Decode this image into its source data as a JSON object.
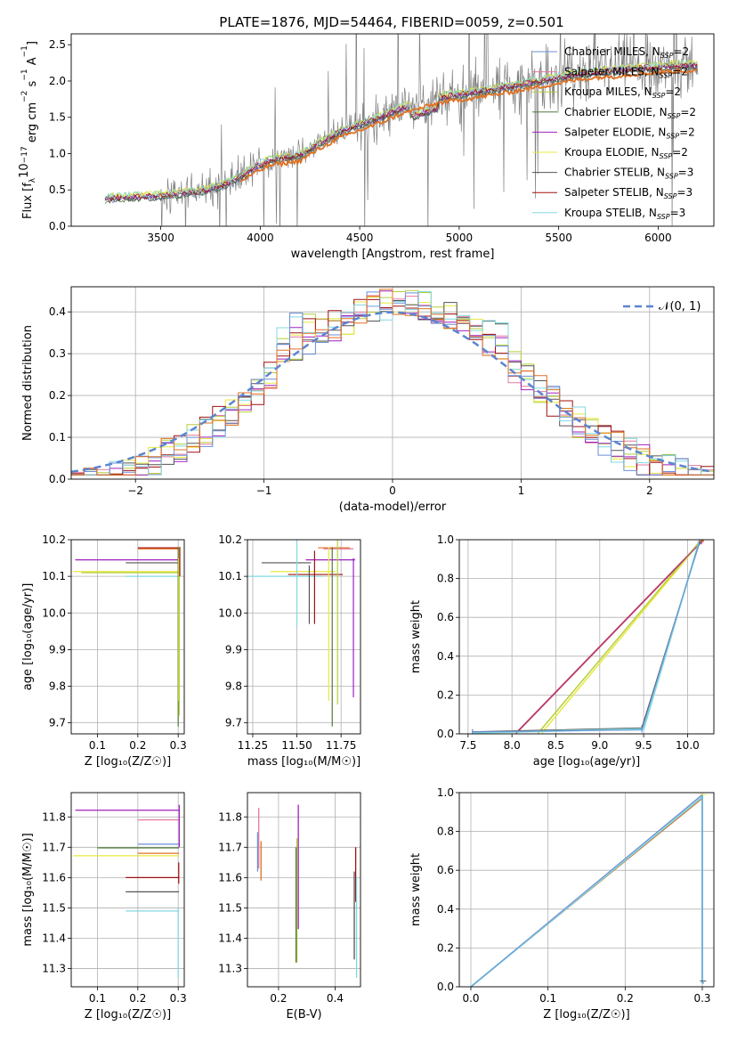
{
  "figure_title": "PLATE=1876, MJD=54464, FIBERID=0059, z=0.501",
  "colors": {
    "chabrier_miles": "#6a8fd6",
    "salpeter_miles": "#e67aa0",
    "kroupa_miles": "#b5cf3a",
    "chabrier_elodie": "#4f7a3a",
    "salpeter_elodie": "#a020c0",
    "kroupa_elodie": "#e8e840",
    "chabrier_stelib": "#555555",
    "salpeter_stelib": "#a01010",
    "kroupa_stelib": "#80d8e0",
    "orange_model": "#e07020",
    "observed_spectrum": "#808080",
    "normal_curve": "#5b85d0"
  },
  "chart_data": [
    {
      "id": "spectrum",
      "type": "line",
      "xlabel": "wavelength [Angstrom, rest frame]",
      "ylabel_parts": [
        "Flux [f",
        "λ",
        "10",
        "−17",
        " erg cm",
        "−2",
        " s",
        "−1",
        " A",
        "−1",
        "]"
      ],
      "xlim": [
        3050,
        6280
      ],
      "ylim": [
        0,
        2.65
      ],
      "xticks": [
        3500,
        4000,
        4500,
        5000,
        5500,
        6000
      ],
      "yticks": [
        0.0,
        0.5,
        1.0,
        1.5,
        2.0,
        2.5
      ],
      "grid": false,
      "legend_position": "upper-right",
      "legend": [
        {
          "label": "Chabrier MILES, N",
          "sub": "SSP",
          "suffix": "=2",
          "color_key": "chabrier_miles"
        },
        {
          "label": "Salpeter MILES, N",
          "sub": "SSP",
          "suffix": "=2",
          "color_key": "salpeter_miles"
        },
        {
          "label": "Kroupa MILES, N",
          "sub": "SSP",
          "suffix": "=2",
          "color_key": "kroupa_miles"
        },
        {
          "label": "Chabrier ELODIE, N",
          "sub": "SSP",
          "suffix": "=2",
          "color_key": "chabrier_elodie"
        },
        {
          "label": "Salpeter ELODIE, N",
          "sub": "SSP",
          "suffix": "=2",
          "color_key": "salpeter_elodie"
        },
        {
          "label": "Kroupa ELODIE, N",
          "sub": "SSP",
          "suffix": "=2",
          "color_key": "kroupa_elodie"
        },
        {
          "label": "Chabrier STELIB, N",
          "sub": "SSP",
          "suffix": "=3",
          "color_key": "chabrier_stelib"
        },
        {
          "label": "Salpeter STELIB, N",
          "sub": "SSP",
          "suffix": "=3",
          "color_key": "salpeter_stelib"
        },
        {
          "label": "Kroupa STELIB, N",
          "sub": "SSP",
          "suffix": "=3",
          "color_key": "kroupa_stelib"
        }
      ],
      "model_trend": {
        "x": [
          3220,
          3300,
          3500,
          3700,
          3850,
          3950,
          4050,
          4200,
          4300,
          4400,
          4500,
          4600,
          4700,
          4800,
          4900,
          5000,
          5100,
          5200,
          5300,
          5400,
          5500,
          5600,
          5700,
          5800,
          5900,
          6000,
          6100,
          6130
        ],
        "y": [
          0.38,
          0.4,
          0.42,
          0.48,
          0.6,
          0.78,
          0.92,
          0.98,
          1.15,
          1.3,
          1.4,
          1.5,
          1.62,
          1.7,
          1.78,
          1.82,
          1.86,
          1.9,
          1.95,
          2.0,
          2.05,
          2.1,
          2.13,
          2.15,
          2.18,
          2.2,
          2.22,
          2.22
        ]
      }
    },
    {
      "id": "residuals",
      "type": "line",
      "xlabel": "(data-model)/error",
      "ylabel": "Normed distribution",
      "xlim": [
        -2.5,
        2.5
      ],
      "ylim": [
        0,
        0.46
      ],
      "xticks": [
        -2,
        -1,
        0,
        1,
        2
      ],
      "xtick_labels": [
        "−2",
        "−1",
        "0",
        "1",
        "2"
      ],
      "yticks": [
        0.0,
        0.1,
        0.2,
        0.3,
        0.4
      ],
      "grid": true,
      "legend_position": "upper-right",
      "normal_label": "𝒩(0, 1)",
      "normal_mu": 0,
      "normal_sigma": 1
    },
    {
      "id": "age_vs_Z",
      "type": "scatter",
      "xlabel": "Z [log₁₀(Z/Z☉)]",
      "ylabel": "age  [log₁₀(age/yr)]",
      "xlim": [
        0.035,
        0.315
      ],
      "ylim": [
        9.67,
        10.2
      ],
      "xticks": [
        0.1,
        0.2,
        0.3
      ],
      "yticks": [
        9.7,
        9.8,
        9.9,
        10.0,
        10.1,
        10.2
      ],
      "grid": true
    },
    {
      "id": "age_vs_mass",
      "type": "scatter",
      "xlabel": "mass [log₁₀(M/M☉)]",
      "xlim": [
        11.22,
        11.86
      ],
      "ylim": [
        9.67,
        10.2
      ],
      "xticks": [
        11.25,
        11.5,
        11.75
      ],
      "yticks": [
        9.7,
        9.8,
        9.9,
        10.0,
        10.1,
        10.2
      ],
      "grid": true
    },
    {
      "id": "massweight_vs_age",
      "type": "line",
      "xlabel": "age  [log₁₀(age/yr)]",
      "ylabel": "mass weight",
      "xlim": [
        7.4,
        10.3
      ],
      "ylim": [
        0,
        1
      ],
      "xticks": [
        7.5,
        8.0,
        8.5,
        9.0,
        9.5,
        10.0
      ],
      "yticks": [
        0.0,
        0.2,
        0.4,
        0.6,
        0.8,
        1.0
      ],
      "grid": true
    },
    {
      "id": "mass_vs_Z",
      "type": "scatter",
      "xlabel": "Z [log₁₀(Z/Z☉)]",
      "ylabel": "mass [log₁₀(M/M☉)]",
      "xlim": [
        0.035,
        0.315
      ],
      "ylim": [
        11.24,
        11.88
      ],
      "xticks": [
        0.1,
        0.2,
        0.3
      ],
      "yticks": [
        11.3,
        11.4,
        11.5,
        11.6,
        11.7,
        11.8
      ],
      "grid": true
    },
    {
      "id": "mass_vs_ebv",
      "type": "scatter",
      "xlabel": "E(B-V)",
      "xlim": [
        0.09,
        0.49
      ],
      "ylim": [
        11.24,
        11.88
      ],
      "xticks": [
        0.2,
        0.4
      ],
      "yticks": [
        11.3,
        11.4,
        11.5,
        11.6,
        11.7,
        11.8
      ],
      "grid": true
    },
    {
      "id": "massweight_vs_Z",
      "type": "line",
      "xlabel": "Z [log₁₀(Z/Z☉)]",
      "ylabel": "mass weight",
      "xlim": [
        -0.015,
        0.315
      ],
      "ylim": [
        0,
        1
      ],
      "xticks": [
        0.0,
        0.1,
        0.2,
        0.3
      ],
      "yticks": [
        0.0,
        0.2,
        0.4,
        0.6,
        0.8,
        1.0
      ],
      "grid": true
    }
  ]
}
